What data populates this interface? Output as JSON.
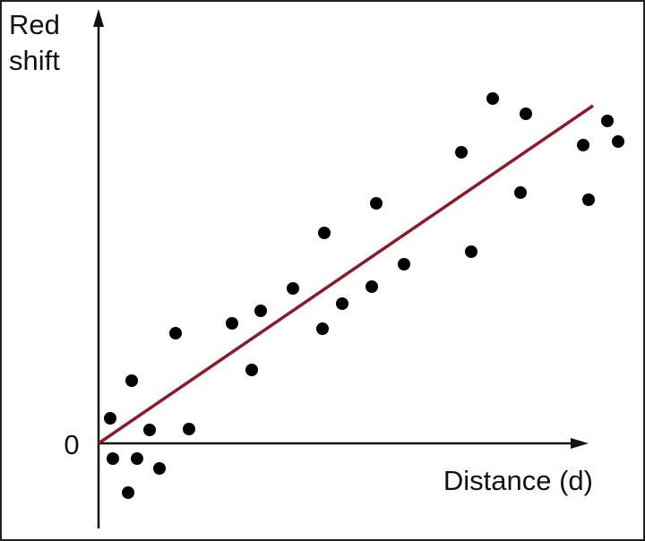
{
  "chart_data": {
    "type": "scatter",
    "x_label": "Distance (d)",
    "y_label": "Red shift",
    "xlim": [
      0,
      60
    ],
    "ylim": [
      -10,
      48
    ],
    "yticks": [
      0
    ],
    "color": "#000000",
    "x": [
      1.3,
      1.6,
      3.7,
      3.3,
      4.3,
      5.7,
      6.8,
      8.6,
      10.1,
      14.9,
      17.1,
      18.1,
      21.7,
      25,
      25.2,
      27.2,
      30.5,
      31,
      34.1,
      40.5,
      41.6,
      44,
      47.1,
      47.7,
      54.1,
      54.7,
      56.8,
      58
    ],
    "values": [
      2.8,
      -1.7,
      7.0,
      -5.5,
      -1.7,
      1.5,
      -2.8,
      12.3,
      1.6,
      13.4,
      8.2,
      14.8,
      17.3,
      12.8,
      23.5,
      15.6,
      17.5,
      26.8,
      20,
      32.5,
      21.4,
      38.5,
      28,
      36.8,
      33.3,
      27.2,
      36,
      33.7
    ],
    "fit_line": {
      "x": [
        0,
        55.2
      ],
      "y": [
        0,
        37.7
      ],
      "color": "#8b1a2b"
    }
  }
}
